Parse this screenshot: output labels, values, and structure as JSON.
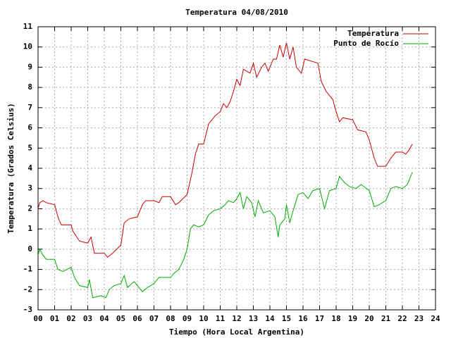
{
  "chart_data": {
    "type": "line",
    "title": "Temperatura 04/08/2010",
    "xlabel": "Tiempo (Hora Local Argentina)",
    "ylabel": "Temperatura (Grados Celsius)",
    "xlim": [
      0,
      24
    ],
    "ylim": [
      -3,
      11
    ],
    "xticks": [
      {
        "value": 0,
        "label": "00"
      },
      {
        "value": 1,
        "label": "01"
      },
      {
        "value": 2,
        "label": "02"
      },
      {
        "value": 3,
        "label": "03"
      },
      {
        "value": 4,
        "label": "04"
      },
      {
        "value": 5,
        "label": "05"
      },
      {
        "value": 6,
        "label": "06"
      },
      {
        "value": 7,
        "label": "07"
      },
      {
        "value": 8,
        "label": "08"
      },
      {
        "value": 9,
        "label": "09"
      },
      10,
      11,
      12,
      13,
      14,
      15,
      16,
      17,
      18,
      19,
      20,
      21,
      22,
      23,
      24
    ],
    "yticks": [
      -3,
      -2,
      -1,
      0,
      1,
      2,
      3,
      4,
      5,
      6,
      7,
      8,
      9,
      10,
      11
    ],
    "grid": true,
    "legend": "top-right",
    "series": [
      {
        "name": "Temperatura",
        "color": "#cc0000",
        "x": [
          0,
          0.1,
          0.3,
          0.5,
          1.0,
          1.2,
          1.4,
          2.0,
          2.1,
          2.5,
          3.0,
          3.2,
          3.4,
          4.0,
          4.2,
          4.5,
          5.0,
          5.2,
          5.5,
          6.0,
          6.3,
          6.5,
          7.0,
          7.3,
          7.5,
          8.0,
          8.3,
          8.5,
          9.0,
          9.3,
          9.5,
          9.7,
          10.0,
          10.3,
          10.7,
          11.0,
          11.2,
          11.4,
          11.6,
          11.8,
          12.0,
          12.2,
          12.4,
          12.8,
          13.0,
          13.2,
          13.5,
          13.7,
          13.9,
          14.2,
          14.4,
          14.6,
          14.8,
          15.0,
          15.2,
          15.4,
          15.6,
          15.9,
          16.1,
          16.5,
          16.9,
          17.1,
          17.4,
          17.8,
          18.0,
          18.2,
          18.4,
          19.0,
          19.3,
          19.8,
          20.0,
          20.3,
          20.5,
          21.0,
          21.3,
          21.6,
          22.0,
          22.2,
          22.4,
          22.6
        ],
        "values": [
          2.0,
          2.3,
          2.4,
          2.3,
          2.2,
          1.6,
          1.2,
          1.2,
          0.9,
          0.4,
          0.3,
          0.6,
          -0.2,
          -0.2,
          -0.4,
          -0.2,
          0.2,
          1.3,
          1.5,
          1.6,
          2.2,
          2.4,
          2.4,
          2.3,
          2.6,
          2.6,
          2.2,
          2.3,
          2.7,
          3.8,
          4.7,
          5.2,
          5.2,
          6.2,
          6.6,
          6.8,
          7.2,
          7.0,
          7.3,
          7.8,
          8.4,
          8.1,
          8.9,
          8.7,
          9.2,
          8.5,
          9.0,
          9.2,
          8.8,
          9.4,
          9.4,
          10.1,
          9.5,
          10.2,
          9.4,
          10.0,
          9.0,
          8.7,
          9.4,
          9.3,
          9.2,
          8.3,
          7.8,
          7.4,
          6.8,
          6.3,
          6.5,
          6.4,
          5.9,
          5.8,
          5.4,
          4.5,
          4.1,
          4.1,
          4.5,
          4.8,
          4.8,
          4.7,
          4.9,
          5.2
        ]
      },
      {
        "name": "Punto de Rocío",
        "color": "#00aa00",
        "x": [
          0,
          0.1,
          0.3,
          0.5,
          1.0,
          1.2,
          1.5,
          2.0,
          2.2,
          2.5,
          3.0,
          3.1,
          3.3,
          3.8,
          4.1,
          4.3,
          4.6,
          5.0,
          5.2,
          5.4,
          5.8,
          6.0,
          6.3,
          6.6,
          7.0,
          7.3,
          8.0,
          8.2,
          8.5,
          8.8,
          9.0,
          9.2,
          9.4,
          9.7,
          10.0,
          10.3,
          10.6,
          11.0,
          11.3,
          11.5,
          11.8,
          12.0,
          12.2,
          12.4,
          12.6,
          12.9,
          13.1,
          13.3,
          13.6,
          14.0,
          14.3,
          14.5,
          14.6,
          14.9,
          15.0,
          15.2,
          15.4,
          15.7,
          16.0,
          16.3,
          16.6,
          17.0,
          17.3,
          17.6,
          18.0,
          18.2,
          18.5,
          18.8,
          19.2,
          19.5,
          20.0,
          20.3,
          20.6,
          21.0,
          21.3,
          21.6,
          22.0,
          22.3,
          22.6
        ],
        "values": [
          -0.3,
          0.0,
          -0.3,
          -0.5,
          -0.5,
          -1.0,
          -1.1,
          -0.9,
          -1.4,
          -1.8,
          -1.9,
          -1.5,
          -2.4,
          -2.3,
          -2.4,
          -2.0,
          -1.8,
          -1.7,
          -1.3,
          -1.9,
          -1.6,
          -1.8,
          -2.1,
          -1.9,
          -1.7,
          -1.4,
          -1.4,
          -1.2,
          -1.0,
          -0.5,
          0.0,
          1.0,
          1.2,
          1.1,
          1.2,
          1.7,
          1.9,
          2.0,
          2.2,
          2.4,
          2.3,
          2.5,
          2.8,
          2.0,
          2.6,
          2.3,
          1.6,
          2.4,
          1.8,
          1.9,
          1.6,
          0.6,
          1.2,
          1.5,
          2.2,
          1.3,
          1.9,
          2.7,
          2.8,
          2.5,
          2.9,
          3.0,
          2.0,
          2.9,
          3.0,
          3.6,
          3.3,
          3.1,
          3.0,
          3.2,
          2.9,
          2.1,
          2.2,
          2.4,
          3.0,
          3.1,
          3.0,
          3.2,
          3.8
        ]
      }
    ]
  }
}
